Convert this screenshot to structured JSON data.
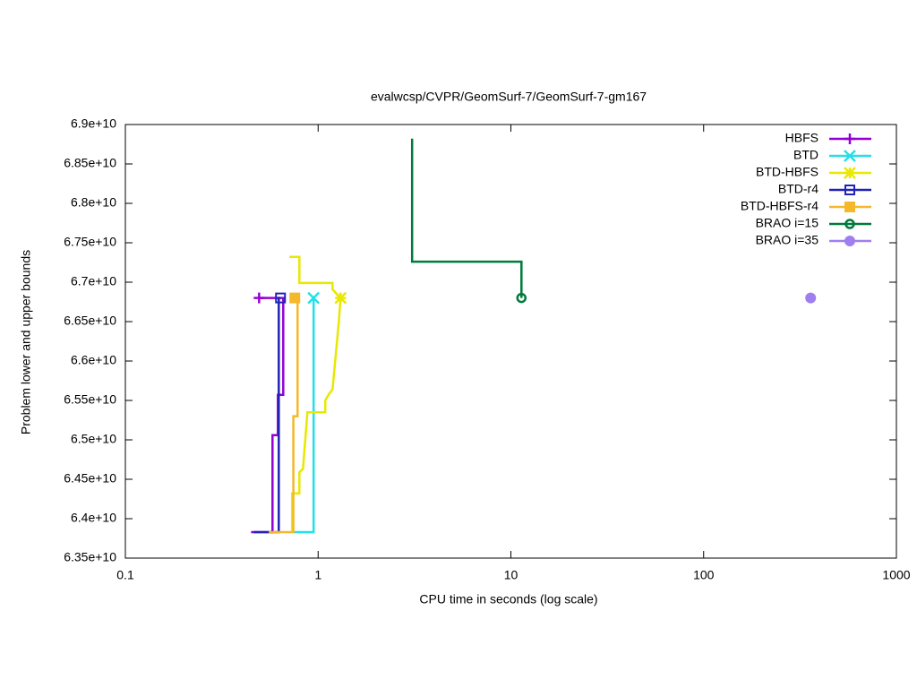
{
  "chart_data": {
    "type": "line",
    "title": "evalwcsp/CVPR/GeomSurf-7/GeomSurf-7-gm167",
    "xlabel": "CPU time in seconds (log scale)",
    "ylabel": "Problem lower and upper bounds",
    "xlog": true,
    "xlim": [
      0.1,
      1000
    ],
    "xticks": [
      0.1,
      1,
      10,
      100,
      1000
    ],
    "ylim": [
      63500000000.0,
      69000000000.0
    ],
    "yticks": [
      {
        "value": 63500000000.0,
        "label": "6.35e+10"
      },
      {
        "value": 64000000000.0,
        "label": "6.4e+10"
      },
      {
        "value": 64500000000.0,
        "label": "6.45e+10"
      },
      {
        "value": 65000000000.0,
        "label": "6.5e+10"
      },
      {
        "value": 65500000000.0,
        "label": "6.55e+10"
      },
      {
        "value": 66000000000.0,
        "label": "6.6e+10"
      },
      {
        "value": 66500000000.0,
        "label": "6.65e+10"
      },
      {
        "value": 67000000000.0,
        "label": "6.7e+10"
      },
      {
        "value": 67500000000.0,
        "label": "6.75e+10"
      },
      {
        "value": 68000000000.0,
        "label": "6.8e+10"
      },
      {
        "value": 68500000000.0,
        "label": "6.85e+10"
      },
      {
        "value": 69000000000.0,
        "label": "6.9e+10"
      }
    ],
    "legend": "top-right",
    "series": [
      {
        "name": "HBFS",
        "color": "#9400d3",
        "marker": "plus",
        "x": [
          0.449,
          0.58,
          0.58,
          0.618,
          0.618,
          0.659,
          0.659,
          0.494
        ],
        "values": [
          63830000000.0,
          63830000000.0,
          65060000000.0,
          65060000000.0,
          65570000000.0,
          65570000000.0,
          66800000000.0,
          66800000000.0
        ]
      },
      {
        "name": "BTD",
        "color": "#22e0e8",
        "marker": "cross",
        "x": [
          0.733,
          0.947,
          0.947
        ],
        "values": [
          63830000000.0,
          63830000000.0,
          66800000000.0
        ]
      },
      {
        "name": "BTD-HBFS",
        "color": "#e8e800",
        "marker": "star",
        "x": [
          0.71,
          0.799,
          0.799,
          1.187,
          1.187,
          1.239,
          1.307,
          null,
          0.733,
          0.733,
          0.799,
          0.799,
          0.834,
          0.88,
          1.089,
          1.089,
          1.137,
          1.187,
          1.239,
          1.279,
          1.307
        ],
        "values": [
          67320000000.0,
          67320000000.0,
          66990000000.0,
          66990000000.0,
          66910000000.0,
          66860000000.0,
          66800000000.0,
          null,
          63830000000.0,
          64320000000.0,
          64320000000.0,
          64590000000.0,
          64630000000.0,
          65350000000.0,
          65350000000.0,
          65500000000.0,
          65580000000.0,
          65640000000.0,
          66125000000.0,
          66490000000.0,
          66800000000.0
        ]
      },
      {
        "name": "BTD-r4",
        "color": "#2222b8",
        "marker": "square-open",
        "x": [
          0.463,
          0.625,
          0.625,
          0.638
        ],
        "values": [
          63830000000.0,
          63830000000.0,
          66800000000.0,
          66800000000.0
        ]
      },
      {
        "name": "BTD-HBFS-r4",
        "color": "#f5b82a",
        "marker": "square",
        "x": [
          0.555,
          0.744,
          0.744,
          0.782,
          0.782,
          0.757
        ],
        "values": [
          63830000000.0,
          63830000000.0,
          65300000000.0,
          65300000000.0,
          66800000000.0,
          66800000000.0
        ]
      },
      {
        "name": "BRAO i=15",
        "color": "#007a3d",
        "marker": "circle-open",
        "x": [
          3.074,
          3.074,
          11.34,
          11.34
        ],
        "values": [
          68820000000.0,
          67260000000.0,
          67260000000.0,
          66800000000.0
        ]
      },
      {
        "name": "BRAO i=35",
        "color": "#9f7fef",
        "marker": "circle",
        "x": [
          359
        ],
        "values": [
          66800000000.0
        ]
      }
    ]
  }
}
